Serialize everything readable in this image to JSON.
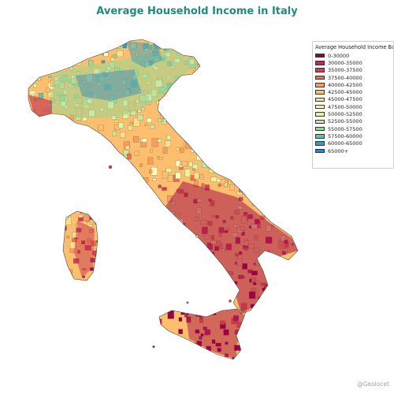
{
  "title": "Average Household Income in Italy",
  "legend": {
    "title": "Average Household Income Band",
    "bands": [
      {
        "label": "0-30000",
        "color": "#9e0142"
      },
      {
        "label": "30000-35000",
        "color": "#c2294a"
      },
      {
        "label": "35000-37500",
        "color": "#d53e4f"
      },
      {
        "label": "37500-40000",
        "color": "#f46d43"
      },
      {
        "label": "40000-42500",
        "color": "#fb9d59"
      },
      {
        "label": "42500-45000",
        "color": "#fdbe6e"
      },
      {
        "label": "45000-47500",
        "color": "#fee08b"
      },
      {
        "label": "47500-50000",
        "color": "#ffffbf"
      },
      {
        "label": "50000-52500",
        "color": "#e6f598"
      },
      {
        "label": "52500-55000",
        "color": "#c7e89e"
      },
      {
        "label": "55000-57500",
        "color": "#99d594"
      },
      {
        "label": "57500-60000",
        "color": "#66c2a5"
      },
      {
        "label": "60000-65000",
        "color": "#3d9ab0"
      },
      {
        "label": "65000+",
        "color": "#3288bd"
      }
    ]
  },
  "credit": "@Geolocet"
}
